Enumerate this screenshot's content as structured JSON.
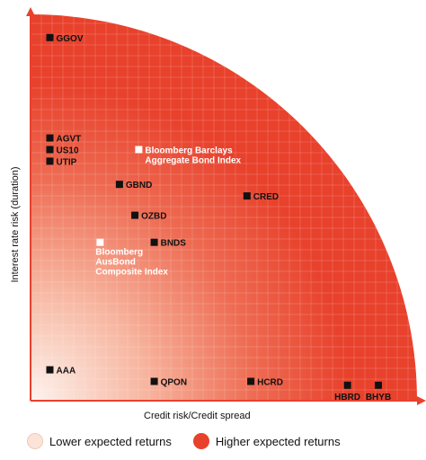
{
  "chart_data": {
    "type": "scatter",
    "xlabel": "Credit risk/Credit spread",
    "ylabel": "Interest rate risk (duration)",
    "xlim": [
      0,
      100
    ],
    "ylim": [
      0,
      100
    ],
    "grid": true,
    "points": [
      {
        "label": "GGOV",
        "x": 5,
        "y": 94,
        "style": "dark"
      },
      {
        "label": "AGVT",
        "x": 5,
        "y": 68,
        "style": "dark"
      },
      {
        "label": "US10",
        "x": 5,
        "y": 65,
        "style": "dark"
      },
      {
        "label": "UTIP",
        "x": 5,
        "y": 62,
        "style": "dark"
      },
      {
        "label": "Bloomberg Barclays Aggregate Bond Index",
        "lines": [
          "Bloomberg Barclays",
          "Aggregate Bond Index"
        ],
        "x": 28,
        "y": 65,
        "style": "light"
      },
      {
        "label": "GBND",
        "x": 23,
        "y": 56,
        "style": "dark"
      },
      {
        "label": "CRED",
        "x": 56,
        "y": 53,
        "style": "dark"
      },
      {
        "label": "OZBD",
        "x": 27,
        "y": 48,
        "style": "dark"
      },
      {
        "label": "BNDS",
        "x": 32,
        "y": 41,
        "style": "dark"
      },
      {
        "label": "Bloomberg AusBond Composite Index",
        "lines": [
          "Bloomberg",
          "AusBond",
          "Composite Index"
        ],
        "x": 18,
        "y": 41,
        "style": "light"
      },
      {
        "label": "AAA",
        "x": 5,
        "y": 8,
        "style": "dark"
      },
      {
        "label": "QPON",
        "x": 32,
        "y": 5,
        "style": "dark"
      },
      {
        "label": "HCRD",
        "x": 57,
        "y": 5,
        "style": "dark"
      },
      {
        "label": "HBRD",
        "x": 82,
        "y": 4,
        "style": "dark"
      },
      {
        "label": "BHYB",
        "x": 90,
        "y": 4,
        "style": "dark"
      }
    ],
    "legend": [
      {
        "label": "Lower expected returns",
        "color": "#fbe3d8"
      },
      {
        "label": "Higher expected returns",
        "color": "#e8412c"
      }
    ],
    "colors": {
      "high": "#e8412c",
      "low": "#fdf1ea",
      "axis": "#e8412c",
      "marker_dark": "#111111",
      "marker_light": "#ffffff"
    }
  }
}
